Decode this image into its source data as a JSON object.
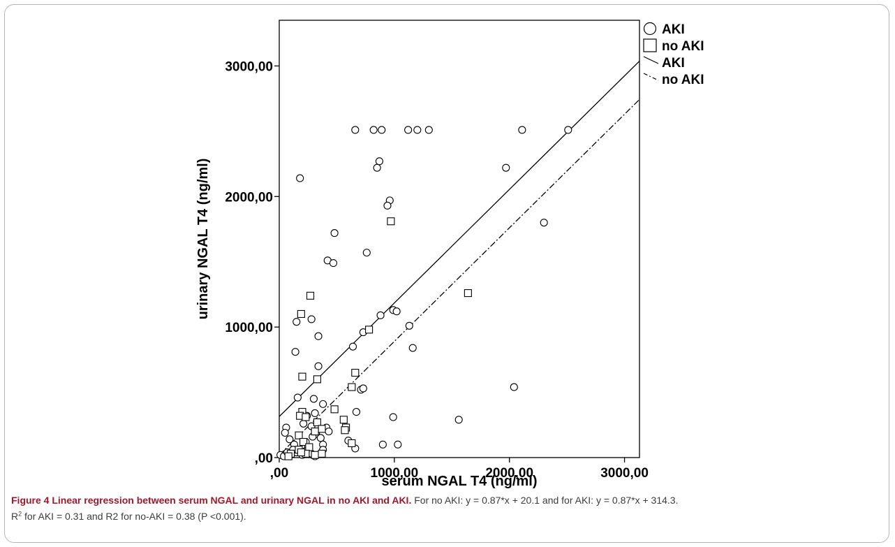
{
  "chart_data": {
    "type": "scatter",
    "title": "",
    "xlabel": "serum NGAL T4 (ng/ml)",
    "ylabel": "urinary NGAL T4 (ng/ml)",
    "xlim": [
      0,
      3130
    ],
    "ylim": [
      0,
      3350
    ],
    "x_ticks": [
      0,
      1000,
      2000,
      3000
    ],
    "y_ticks": [
      0,
      1000,
      2000,
      3000
    ],
    "x_tick_labels": [
      ",00",
      "1000,00",
      "2000,00",
      "3000,00"
    ],
    "y_tick_labels": [
      ",00",
      "1000,00",
      "2000,00",
      "3000,00"
    ],
    "grid": false,
    "legend_position": "top-right outside plot",
    "series": [
      {
        "name": "AKI",
        "marker": "circle",
        "points": [
          [
            660,
            2510
          ],
          [
            820,
            2510
          ],
          [
            890,
            2510
          ],
          [
            1120,
            2510
          ],
          [
            1200,
            2510
          ],
          [
            1300,
            2510
          ],
          [
            2110,
            2510
          ],
          [
            2510,
            2510
          ],
          [
            180,
            2140
          ],
          [
            870,
            2270
          ],
          [
            850,
            2220
          ],
          [
            1970,
            2220
          ],
          [
            960,
            1970
          ],
          [
            940,
            1930
          ],
          [
            2300,
            1800
          ],
          [
            480,
            1720
          ],
          [
            760,
            1570
          ],
          [
            420,
            1510
          ],
          [
            470,
            1490
          ],
          [
            990,
            1130
          ],
          [
            1020,
            1120
          ],
          [
            880,
            1090
          ],
          [
            280,
            1060
          ],
          [
            150,
            1040
          ],
          [
            1130,
            1010
          ],
          [
            340,
            930
          ],
          [
            730,
            960
          ],
          [
            640,
            850
          ],
          [
            1160,
            840
          ],
          [
            140,
            810
          ],
          [
            340,
            700
          ],
          [
            710,
            520
          ],
          [
            730,
            530
          ],
          [
            2040,
            540
          ],
          [
            160,
            460
          ],
          [
            300,
            450
          ],
          [
            380,
            410
          ],
          [
            670,
            350
          ],
          [
            310,
            340
          ],
          [
            240,
            320
          ],
          [
            210,
            260
          ],
          [
            60,
            230
          ],
          [
            280,
            240
          ],
          [
            410,
            230
          ],
          [
            430,
            200
          ],
          [
            50,
            190
          ],
          [
            320,
            180
          ],
          [
            90,
            140
          ],
          [
            290,
            160
          ],
          [
            360,
            150
          ],
          [
            230,
            120
          ],
          [
            600,
            130
          ],
          [
            990,
            310
          ],
          [
            1560,
            290
          ],
          [
            130,
            100
          ],
          [
            250,
            80
          ],
          [
            380,
            100
          ],
          [
            900,
            100
          ],
          [
            1030,
            100
          ],
          [
            380,
            60
          ],
          [
            660,
            70
          ],
          [
            10,
            20
          ],
          [
            40,
            10
          ],
          [
            150,
            40
          ],
          [
            200,
            20
          ],
          [
            230,
            50
          ],
          [
            280,
            30
          ],
          [
            310,
            10
          ],
          [
            120,
            60
          ],
          [
            70,
            40
          ]
        ]
      },
      {
        "name": "no AKI",
        "marker": "square",
        "points": [
          [
            970,
            1810
          ],
          [
            1640,
            1260
          ],
          [
            270,
            1240
          ],
          [
            190,
            1100
          ],
          [
            780,
            980
          ],
          [
            200,
            620
          ],
          [
            330,
            600
          ],
          [
            660,
            650
          ],
          [
            630,
            540
          ],
          [
            480,
            370
          ],
          [
            200,
            350
          ],
          [
            180,
            320
          ],
          [
            230,
            310
          ],
          [
            560,
            290
          ],
          [
            330,
            270
          ],
          [
            580,
            230
          ],
          [
            370,
            220
          ],
          [
            570,
            210
          ],
          [
            310,
            200
          ],
          [
            170,
            170
          ],
          [
            210,
            120
          ],
          [
            630,
            110
          ],
          [
            260,
            80
          ],
          [
            170,
            60
          ],
          [
            230,
            30
          ],
          [
            100,
            30
          ],
          [
            310,
            20
          ],
          [
            370,
            30
          ],
          [
            80,
            10
          ],
          [
            190,
            40
          ]
        ]
      }
    ],
    "fit_lines": [
      {
        "name": "AKI",
        "style": "solid",
        "slope": 0.87,
        "intercept": 314.3
      },
      {
        "name": "no AKI",
        "style": "dash-dot",
        "slope": 0.87,
        "intercept": 20.1
      }
    ],
    "legend": [
      {
        "label": "AKI",
        "marker": "circle"
      },
      {
        "label": "no AKI",
        "marker": "square"
      },
      {
        "label": "AKI",
        "marker": "solid-line"
      },
      {
        "label": "no AKI",
        "marker": "dash-dot-line"
      }
    ]
  },
  "caption": {
    "title": "Figure 4 Linear regression between serum NGAL and urinary NGAL in no AKI and AKI.",
    "text_1": " For no AKI: y = 0.87*x + 20.1 and for AKI: y = 0.87*x + 314.3.",
    "r": "R",
    "sup": "2",
    "text_2": " for AKI = 0.31 and R2 for no-AKI = 0.38 (P <0.001)."
  }
}
